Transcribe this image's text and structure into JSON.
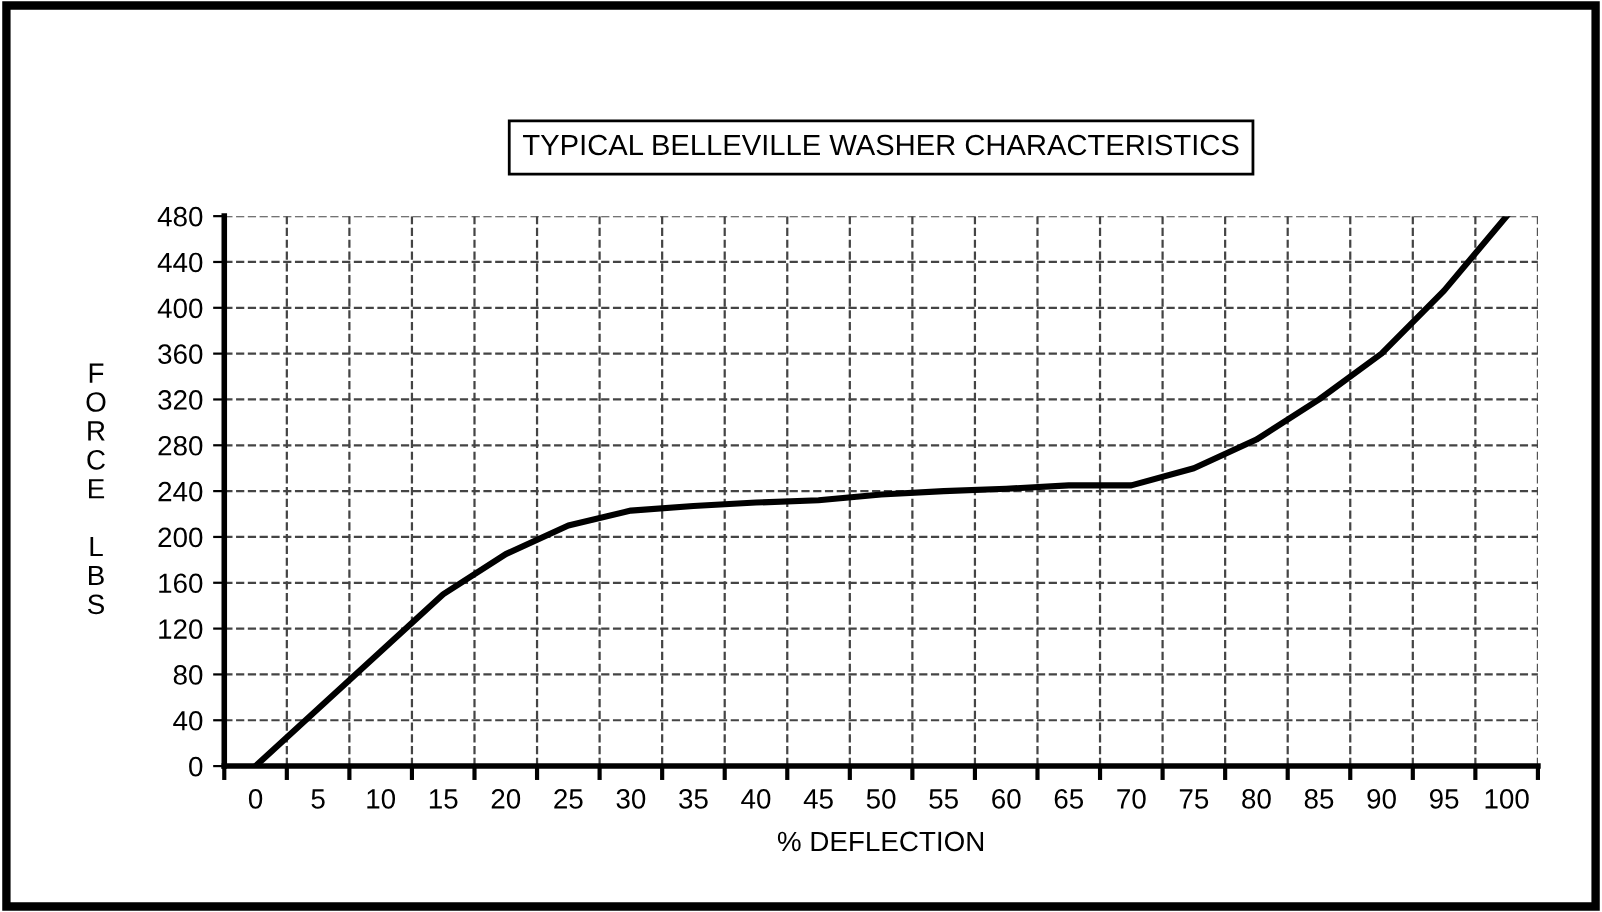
{
  "chart_data": {
    "type": "line",
    "title": "TYPICAL BELLEVILLE WASHER CHARACTERISTICS",
    "xlabel": "% DEFLECTION",
    "ylabel": "FORCE LBS",
    "categories": [
      "0",
      "5",
      "10",
      "15",
      "20",
      "25",
      "30",
      "35",
      "40",
      "45",
      "50",
      "55",
      "60",
      "65",
      "70",
      "75",
      "80",
      "85",
      "90",
      "95",
      "100"
    ],
    "series": [
      {
        "color": "#000000",
        "values": [
          0,
          50,
          100,
          150,
          185,
          210,
          223,
          227,
          230,
          232,
          237,
          240,
          242,
          245,
          245,
          260,
          285,
          320,
          360,
          415,
          480
        ]
      }
    ],
    "ylim": [
      0,
      480
    ],
    "yticks": [
      0,
      40,
      80,
      120,
      160,
      200,
      240,
      280,
      320,
      360,
      400,
      440,
      480
    ],
    "grid": true,
    "line_style": "solid",
    "marker": "none"
  }
}
